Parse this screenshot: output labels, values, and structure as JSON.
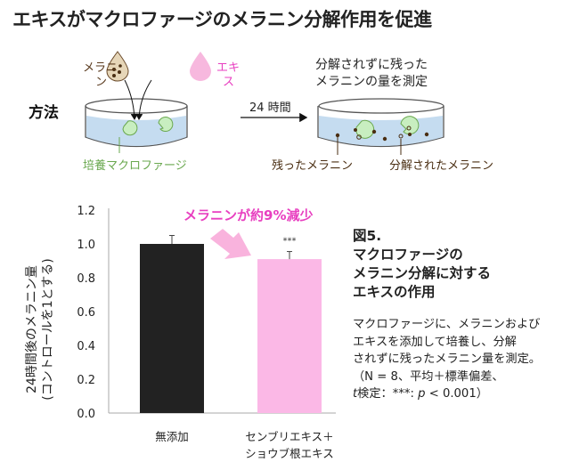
{
  "title": "エキスがマクロファージのメラニン分解作用を促進",
  "diagram": {
    "method_label": "方法",
    "melanin_label_1": "メラニ",
    "melanin_label_2": "ン",
    "extract_label_1": "エキ",
    "extract_label_2": "ス",
    "time_label": "24 時間",
    "measure_label_1": "分解されずに残った",
    "measure_label_2": "メラニンの量を測定",
    "macrophage_label": "培養マクロファージ",
    "remaining_label": "残ったメラニン",
    "degraded_label": "分解されたメラニン",
    "colors": {
      "melanin": "#5a3a1e",
      "extract": "#f7b8de",
      "macrophage": "#c8eec0",
      "medium": "#c5dcf0",
      "pink_text": "#e83fc0",
      "green_text": "#6aa84f"
    }
  },
  "chart_data": {
    "type": "bar",
    "categories": [
      "無添加",
      "センブリエキス＋\nショウブ根エキス"
    ],
    "category_lines": [
      [
        "無添加"
      ],
      [
        "センブリエキス＋",
        "ショウブ根エキス"
      ]
    ],
    "values": [
      1.0,
      0.91
    ],
    "error": [
      0.05,
      0.045
    ],
    "colors": [
      "#222222",
      "#fbb8e6"
    ],
    "significance": [
      "",
      "***"
    ],
    "ylabel_1": "24時間後のメラニン量",
    "ylabel_2": "(コントロールを1とする)",
    "ylim": [
      0,
      1.2
    ],
    "yticks": [
      "0.0",
      "0.2",
      "0.4",
      "0.6",
      "0.8",
      "1.0",
      "1.2"
    ],
    "annotation": "メラニンが約9%減少",
    "grid": false
  },
  "figure": {
    "number": "図5.",
    "title_lines": [
      "マクロファージの",
      "メラニン分解に対する",
      "エキスの作用"
    ],
    "caption_lines": [
      "マクロファージに、メラニンおよび",
      "エキスを添加して培養し、分解",
      "されずに残ったメラニン量を測定。"
    ],
    "stats_line_1": "（N = 8、平均＋標準偏差、",
    "stats_t": "t",
    "stats_line_2a": "検定：***: ",
    "stats_p": "p",
    "stats_line_2b": " < 0.001）"
  }
}
